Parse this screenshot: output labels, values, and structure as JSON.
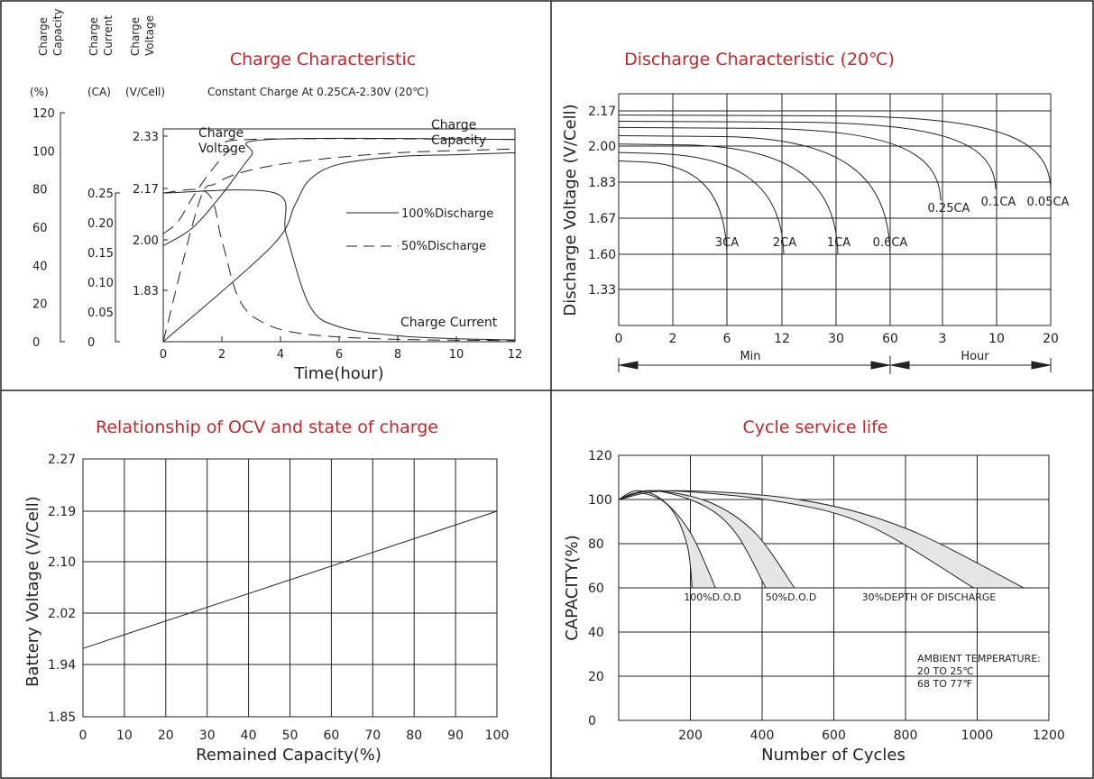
{
  "colors": {
    "title": "#c0282d",
    "ink": "#222222",
    "grid": "#222222",
    "band_fill": "#e6e6e6"
  },
  "chart_data": [
    {
      "type": "line",
      "title": "Charge Characteristic",
      "subtitle": "Constant Charge At 0.25CA-2.30V  (20℃)",
      "xlabel": "Time(hour)",
      "axes": {
        "capacity": {
          "labels": [
            "Charge",
            "Capacity"
          ],
          "unit": "(%)",
          "ticks": [
            "120",
            "100",
            "80",
            "60",
            "40",
            "20",
            "0"
          ],
          "ylim": [
            0,
            120
          ]
        },
        "current": {
          "labels": [
            "Charge",
            "Current"
          ],
          "unit": "(CA)",
          "ticks": [
            "0.25",
            "0.20",
            "0.15",
            "0.10",
            "0.05",
            "0"
          ],
          "ylim": [
            0,
            0.25
          ]
        },
        "voltage": {
          "labels": [
            "Charge",
            "Voltage"
          ],
          "unit": "(V/Cell)",
          "ticks": [
            "2.33",
            "2.17",
            "2.00",
            "1.83"
          ]
        },
        "x_ticks": [
          "0",
          "2",
          "4",
          "6",
          "8",
          "10",
          "12"
        ],
        "xlim": [
          0,
          12
        ]
      },
      "annotations": [
        "Charge\nVoltage",
        "Charge\nCapacity",
        "Charge Current"
      ],
      "legend": {
        "placement": "right",
        "entries": [
          "100%Discharge",
          "50%Discharge"
        ]
      },
      "series": [
        {
          "name": "100%Discharge",
          "quantity": "Charge Voltage",
          "x": [
            0,
            1,
            2,
            3,
            3.6,
            12
          ],
          "y": [
            1.98,
            2.04,
            2.15,
            2.27,
            2.32,
            2.32
          ]
        },
        {
          "name": "50%Discharge",
          "quantity": "Charge Voltage",
          "x": [
            0,
            0.5,
            1,
            1.6,
            2.3,
            3,
            12
          ],
          "y": [
            2.02,
            2.06,
            2.14,
            2.22,
            2.29,
            2.32,
            2.32
          ]
        },
        {
          "name": "100%Discharge",
          "quantity": "Charge Capacity",
          "x": [
            0,
            3.7,
            4.5,
            5,
            6,
            8,
            10,
            12
          ],
          "y": [
            0,
            50,
            72,
            85,
            93,
            97,
            98,
            99
          ]
        },
        {
          "name": "50%Discharge",
          "quantity": "Charge Capacity",
          "x": [
            0,
            1.2,
            1.8,
            3,
            5,
            8,
            12
          ],
          "y": [
            0,
            72,
            83,
            90,
            95,
            99,
            101
          ]
        },
        {
          "name": "100%Discharge",
          "quantity": "Charge Current",
          "x": [
            0,
            3.8,
            4.2,
            5,
            6,
            8,
            10,
            12
          ],
          "y": [
            0.25,
            0.25,
            0.18,
            0.06,
            0.025,
            0.01,
            0.005,
            0.003
          ]
        },
        {
          "name": "50%Discharge",
          "quantity": "Charge Current",
          "x": [
            0,
            1.5,
            2,
            2.6,
            3.5,
            5,
            8,
            12
          ],
          "y": [
            0.25,
            0.25,
            0.17,
            0.07,
            0.03,
            0.012,
            0.004,
            0.002
          ]
        }
      ]
    },
    {
      "type": "line",
      "title": "Discharge Characteristic  (20℃)",
      "ylabel": "Discharge Voltage (V/Cell)",
      "y_ticks": [
        "2.17",
        "2.00",
        "1.83",
        "1.67",
        "1.60",
        "1.33"
      ],
      "x_ticks": [
        "0",
        "2",
        "6",
        "12",
        "30",
        "60",
        "3",
        "10",
        "20"
      ],
      "x_units": [
        {
          "label": "Min",
          "range": [
            "0",
            "60"
          ]
        },
        {
          "label": "Hour",
          "range": [
            "60",
            "20"
          ]
        }
      ],
      "series": [
        {
          "name": "3CA",
          "end_x": "6 Min",
          "start_v": 1.93,
          "end_v": 1.6
        },
        {
          "name": "2CA",
          "end_x": "12 Min",
          "start_v": 1.97,
          "end_v": 1.6
        },
        {
          "name": "1CA",
          "end_x": "30 Min",
          "start_v": 2.01,
          "end_v": 1.6
        },
        {
          "name": "0.6CA",
          "end_x": "60 Min",
          "start_v": 2.05,
          "end_v": 1.6
        },
        {
          "name": "0.25CA",
          "end_x": "3 Hour",
          "start_v": 2.09,
          "end_v": 1.75
        },
        {
          "name": "0.1CA",
          "end_x": "10 Hour",
          "start_v": 2.12,
          "end_v": 1.8
        },
        {
          "name": "0.05CA",
          "end_x": "20 Hour",
          "start_v": 2.15,
          "end_v": 1.8
        }
      ]
    },
    {
      "type": "line",
      "title": "Relationship of OCV and state of charge",
      "xlabel": "Remained Capacity(%)",
      "ylabel": "Battery Voltage (V/Cell)",
      "x_ticks": [
        "0",
        "10",
        "20",
        "30",
        "40",
        "50",
        "60",
        "70",
        "80",
        "90",
        "100"
      ],
      "y_ticks": [
        "2.27",
        "2.19",
        "2.10",
        "2.02",
        "1.94",
        "1.85"
      ],
      "xlim": [
        0,
        100
      ],
      "series": [
        {
          "x": [
            0,
            100
          ],
          "y": [
            1.965,
            2.19
          ]
        }
      ]
    },
    {
      "type": "area",
      "title": "Cycle service life",
      "xlabel": "Number of Cycles",
      "ylabel": "CAPACITY(%)",
      "x_ticks": [
        "0",
        "200",
        "400",
        "600",
        "800",
        "1000",
        "1200"
      ],
      "y_ticks": [
        "120",
        "100",
        "80",
        "60",
        "40",
        "20",
        "0"
      ],
      "xlim": [
        0,
        1200
      ],
      "ylim": [
        0,
        120
      ],
      "note": [
        "AMBIENT TEMPERATURE:",
        "20 TO 25℃",
        "68 TO 77℉"
      ],
      "series": [
        {
          "name": "100%D.O.D",
          "upper": [
            [
              0,
              100
            ],
            [
              50,
              104
            ],
            [
              120,
              100
            ],
            [
              200,
              85
            ],
            [
              270,
              60
            ]
          ],
          "lower": [
            [
              0,
              100
            ],
            [
              60,
              103
            ],
            [
              140,
              97
            ],
            [
              190,
              80
            ],
            [
              205,
              60
            ]
          ]
        },
        {
          "name": "50%D.O.D",
          "upper": [
            [
              0,
              100
            ],
            [
              90,
              104
            ],
            [
              250,
              99
            ],
            [
              380,
              85
            ],
            [
              490,
              60
            ]
          ],
          "lower": [
            [
              0,
              100
            ],
            [
              100,
              104
            ],
            [
              240,
              97
            ],
            [
              330,
              84
            ],
            [
              410,
              60
            ]
          ]
        },
        {
          "name": "30%DEPTH OF DISCHARGE",
          "upper": [
            [
              0,
              100
            ],
            [
              150,
              104
            ],
            [
              500,
              100
            ],
            [
              800,
              87
            ],
            [
              1130,
              60
            ]
          ],
          "lower": [
            [
              0,
              100
            ],
            [
              120,
              104
            ],
            [
              450,
              99
            ],
            [
              700,
              88
            ],
            [
              990,
              60
            ]
          ]
        }
      ]
    }
  ]
}
